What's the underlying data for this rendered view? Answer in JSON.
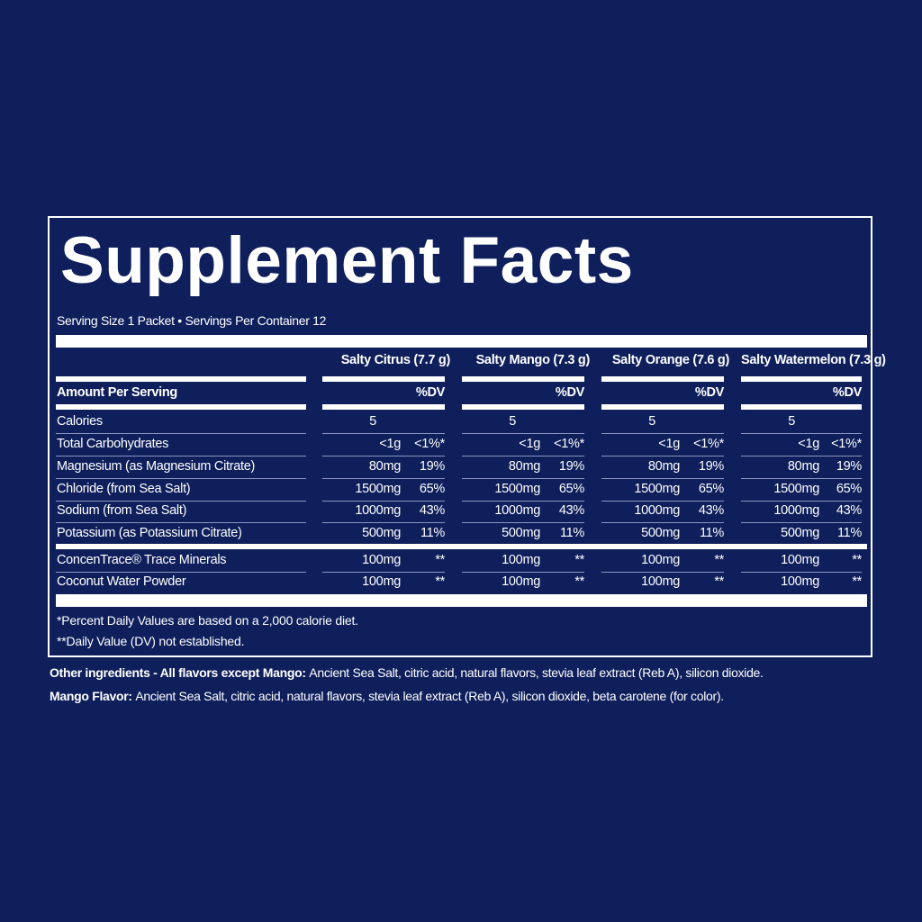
{
  "title": "Supplement Facts",
  "serving": "Serving Size 1 Packet • Servings Per Container 12",
  "amount_header": "Amount Per Serving",
  "dv_header": "%DV",
  "flavors": [
    "Salty Citrus (7.7 g)",
    "Salty Mango (7.3 g)",
    "Salty Orange (7.6 g)",
    "Salty Watermelon (7.3 g)"
  ],
  "rows": [
    {
      "label": "Calories",
      "amount": "5",
      "dv": ""
    },
    {
      "label": "Total Carbohydrates",
      "amount": "<1g",
      "dv": "<1%*"
    },
    {
      "label": "Magnesium (as Magnesium Citrate)",
      "amount": "80mg",
      "dv": "19%"
    },
    {
      "label": "Chloride (from Sea Salt)",
      "amount": "1500mg",
      "dv": "65%"
    },
    {
      "label": "Sodium (from Sea Salt)",
      "amount": "1000mg",
      "dv": "43%"
    },
    {
      "label": "Potassium (as Potassium Citrate)",
      "amount": "500mg",
      "dv": "11%"
    },
    {
      "label": "ConcenTrace® Trace Minerals",
      "amount": "100mg",
      "dv": "**"
    },
    {
      "label": "Coconut Water Powder",
      "amount": "100mg",
      "dv": "**"
    }
  ],
  "footnotes": [
    "*Percent Daily Values are based on a 2,000 calorie diet.",
    "**Daily Value (DV) not established."
  ],
  "ingredients": [
    {
      "label": "Other ingredients - All flavors except Mango:",
      "text": "Ancient Sea Salt, citric acid, natural flavors, stevia leaf extract (Reb A), silicon dioxide."
    },
    {
      "label": "Mango Flavor:",
      "text": "Ancient Sea Salt, citric acid, natural flavors, stevia leaf extract (Reb A), silicon dioxide, beta carotene (for color)."
    }
  ],
  "colors": {
    "background": "#0e1f5c",
    "text": "#ffffff"
  }
}
